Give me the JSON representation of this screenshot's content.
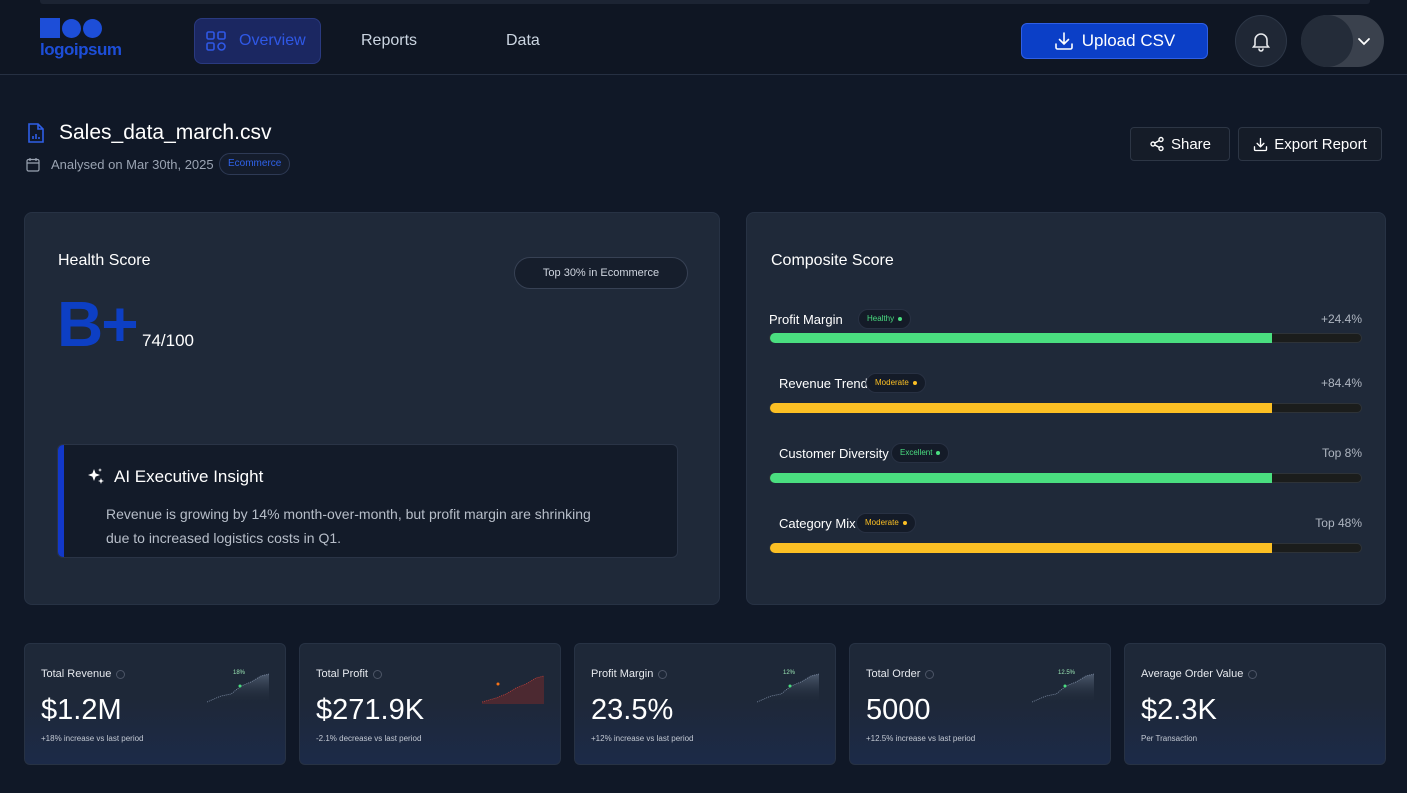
{
  "brand": {
    "logo_text": "logoipsum",
    "accent": "#1d4ed8"
  },
  "nav": {
    "tabs": [
      {
        "label": "Overview",
        "active": true
      },
      {
        "label": "Reports",
        "active": false
      },
      {
        "label": "Data",
        "active": false
      }
    ],
    "upload_label": "Upload CSV"
  },
  "file": {
    "name": "Sales_data_march.csv",
    "analysed": "Analysed on Mar 30th, 2025",
    "category_tag": "Ecommerce",
    "share_label": "Share",
    "export_label": "Export Report"
  },
  "health": {
    "title": "Health Score",
    "rank": "Top 30% in Ecommerce",
    "grade": "B+",
    "score": "74/100",
    "insight": {
      "title": "AI Executive Insight",
      "text": "Revenue is growing by 14% month-over-month, but profit margin are shrinking due to increased logistics costs in Q1."
    }
  },
  "composite": {
    "title": "Composite Score",
    "metrics": [
      {
        "name": "Profit Margin",
        "badge": "Healthy",
        "badge_color": "#4ade80",
        "value": "+24.4%",
        "fill": 0.85,
        "bar_color": "#4ade80"
      },
      {
        "name": "Revenue Trend",
        "badge": "Moderate",
        "badge_color": "#fbbf24",
        "value": "+84.4%",
        "fill": 0.85,
        "bar_color": "#fbbf24"
      },
      {
        "name": "Customer Diversity",
        "badge": "Excellent",
        "badge_color": "#4ade80",
        "value": "Top 8%",
        "fill": 0.85,
        "bar_color": "#4ade80"
      },
      {
        "name": "Category Mix",
        "badge": "Moderate",
        "badge_color": "#fbbf24",
        "value": "Top 48%",
        "fill": 0.85,
        "bar_color": "#fbbf24"
      }
    ]
  },
  "kpis": [
    {
      "label": "Total Revenue",
      "value": "$1.2M",
      "sub": "+18% increase vs last period",
      "spark_label": "18%",
      "trend": "up"
    },
    {
      "label": "Total Profit",
      "value": "$271.9K",
      "sub": "-2.1% decrease vs last period",
      "spark_label": "",
      "trend": "down"
    },
    {
      "label": "Profit Margin",
      "value": "23.5%",
      "sub": "+12% increase vs last period",
      "spark_label": "12%",
      "trend": "up"
    },
    {
      "label": "Total Order",
      "value": "5000",
      "sub": "+12.5% increase vs last period",
      "spark_label": "12.5%",
      "trend": "up"
    },
    {
      "label": "Average Order Value",
      "value": "$2.3K",
      "sub": "Per Transaction",
      "spark_label": "",
      "trend": "none"
    }
  ]
}
